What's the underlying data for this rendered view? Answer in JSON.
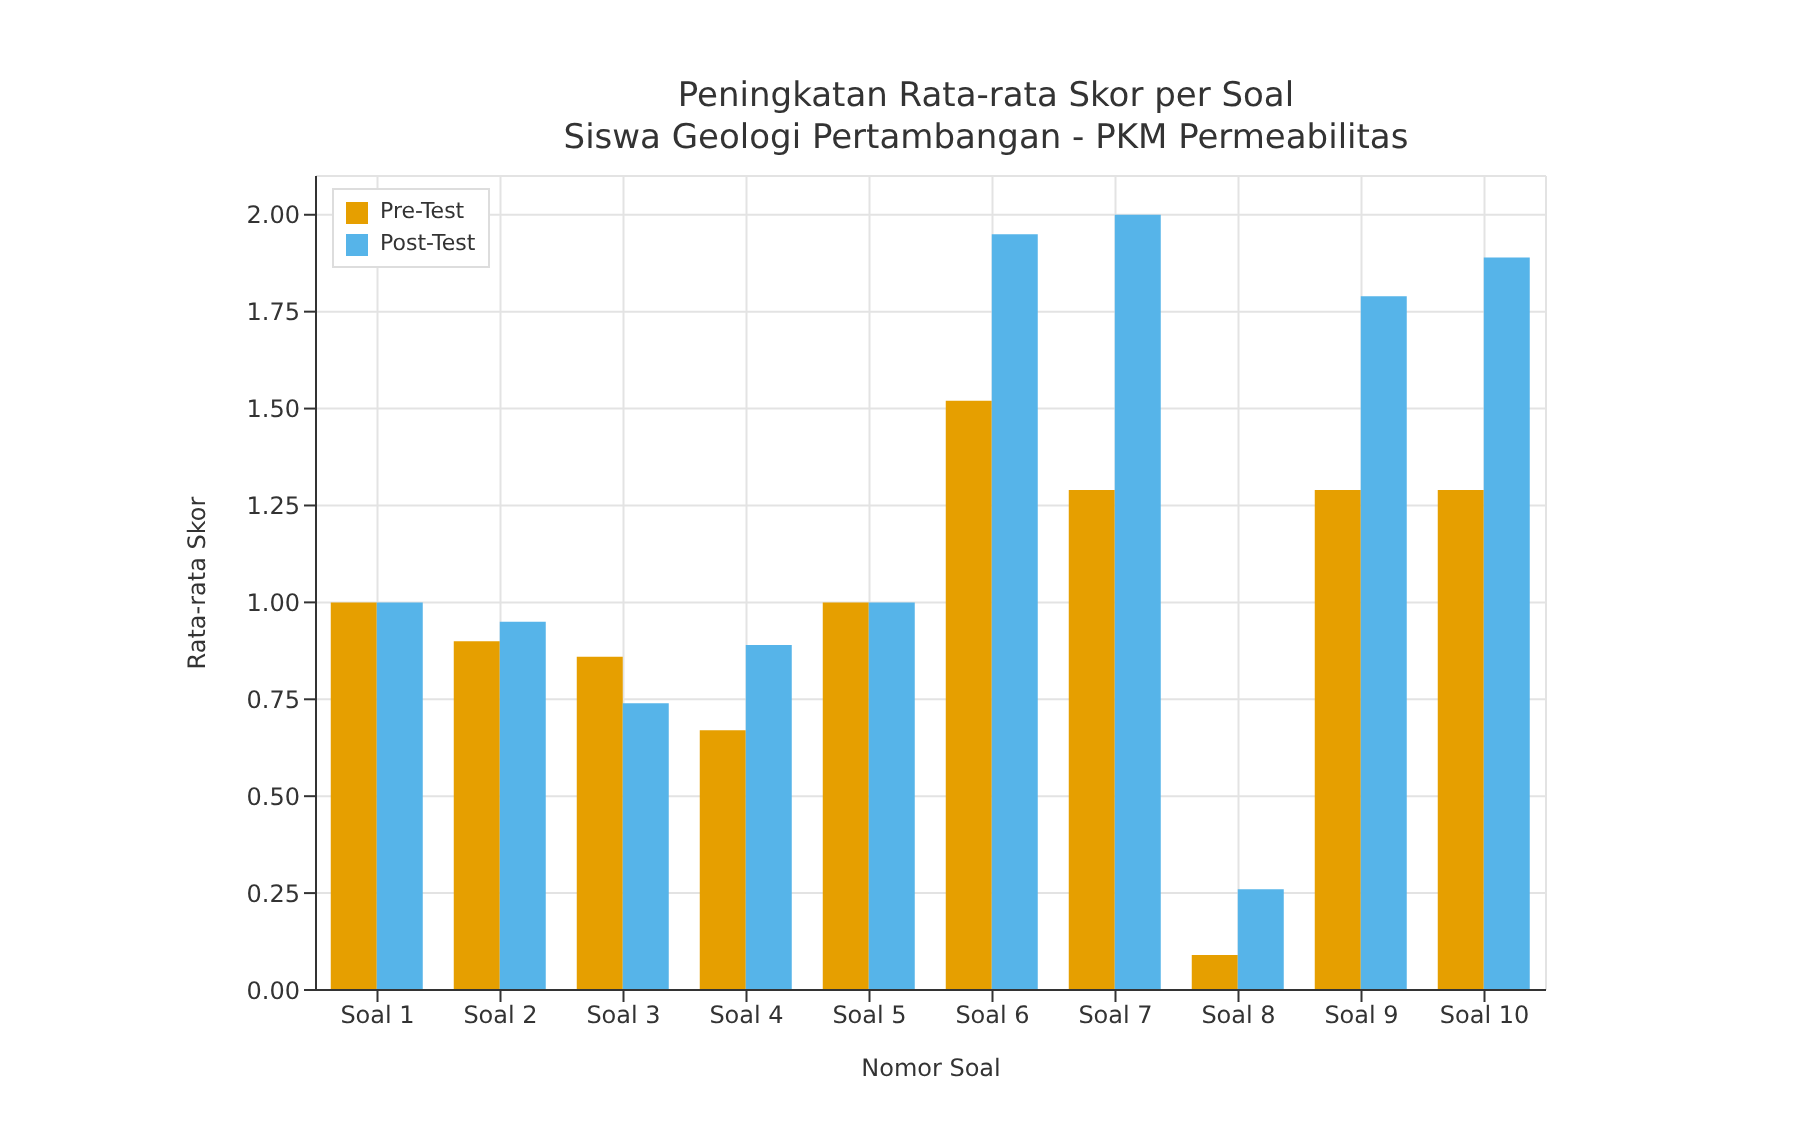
{
  "chart_data": {
    "type": "bar",
    "title": "Peningkatan Rata-rata Skor per Soal",
    "subtitle": "Siswa Geologi Pertambangan - PKM Permeabilitas",
    "xlabel": "Nomor Soal",
    "ylabel": "Rata-rata Skor",
    "categories": [
      "Soal 1",
      "Soal 2",
      "Soal 3",
      "Soal 4",
      "Soal 5",
      "Soal 6",
      "Soal 7",
      "Soal 8",
      "Soal 9",
      "Soal 10"
    ],
    "series": [
      {
        "name": "Pre-Test",
        "color": "#e69f00",
        "values": [
          1.0,
          0.9,
          0.86,
          0.67,
          1.0,
          1.52,
          1.29,
          0.09,
          1.29,
          1.29
        ]
      },
      {
        "name": "Post-Test",
        "color": "#56b4e9",
        "values": [
          1.0,
          0.95,
          0.74,
          0.89,
          1.0,
          1.95,
          2.0,
          0.26,
          1.79,
          1.89
        ]
      }
    ],
    "ylim": [
      0,
      2.1
    ],
    "yticks": [
      {
        "value": 0,
        "label": "0.00"
      },
      {
        "value": 0.25,
        "label": "0.25"
      },
      {
        "value": 0.5,
        "label": "0.50"
      },
      {
        "value": 0.75,
        "label": "0.75"
      },
      {
        "value": 1,
        "label": "1.00"
      },
      {
        "value": 1.25,
        "label": "1.25"
      },
      {
        "value": 1.5,
        "label": "1.50"
      },
      {
        "value": 1.75,
        "label": "1.75"
      },
      {
        "value": 2,
        "label": "2.00"
      }
    ],
    "grid": true,
    "legend": "top left"
  }
}
